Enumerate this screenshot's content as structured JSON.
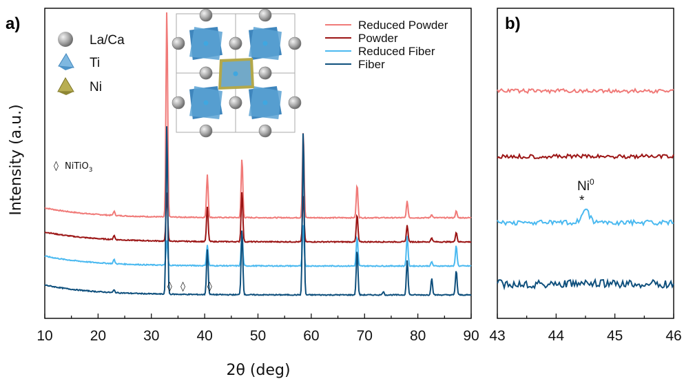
{
  "chart_data": [
    {
      "panel": "a)",
      "type": "line",
      "xlabel": "2θ (deg)",
      "ylabel": "Intensity (a.u.)",
      "xlim": [
        10,
        90
      ],
      "xticks": [
        10,
        20,
        30,
        40,
        50,
        60,
        70,
        80,
        90
      ],
      "grid": false,
      "legend_position": "top-right",
      "series": [
        {
          "name": "Reduced Powder",
          "color": "#f07a78",
          "offset": 3,
          "peaks": [
            [
              23.0,
              0.05
            ],
            [
              32.9,
              2.55
            ],
            [
              40.5,
              0.52
            ],
            [
              47.0,
              0.72
            ],
            [
              58.5,
              1.05
            ],
            [
              68.6,
              0.4
            ],
            [
              78.0,
              0.2
            ],
            [
              82.6,
              0.04
            ],
            [
              87.2,
              0.08
            ]
          ]
        },
        {
          "name": "Powder",
          "color": "#9b1414",
          "offset": 2,
          "peaks": [
            [
              23.0,
              0.05
            ],
            [
              32.9,
              0.6
            ],
            [
              40.5,
              0.42
            ],
            [
              47.0,
              0.62
            ],
            [
              58.5,
              0.57
            ],
            [
              68.6,
              0.33
            ],
            [
              78.0,
              0.2
            ],
            [
              82.6,
              0.05
            ],
            [
              87.2,
              0.12
            ]
          ]
        },
        {
          "name": "Reduced Fiber",
          "color": "#4ab9f0",
          "offset": 1,
          "peaks": [
            [
              23.0,
              0.05
            ],
            [
              32.9,
              0.3
            ],
            [
              40.5,
              0.25
            ],
            [
              47.0,
              0.4
            ],
            [
              58.5,
              0.5
            ],
            [
              68.6,
              0.36
            ],
            [
              78.0,
              0.36
            ],
            [
              82.6,
              0.05
            ],
            [
              87.2,
              0.25
            ]
          ]
        },
        {
          "name": "Fiber",
          "color": "#0e4f7c",
          "offset": 0,
          "peaks": [
            [
              23.0,
              0.03
            ],
            [
              32.9,
              2.05
            ],
            [
              40.5,
              0.55
            ],
            [
              47.0,
              0.8
            ],
            [
              58.5,
              2.0
            ],
            [
              68.6,
              0.55
            ],
            [
              73.5,
              0.04
            ],
            [
              78.0,
              0.42
            ],
            [
              82.6,
              0.2
            ],
            [
              87.2,
              0.3
            ]
          ]
        }
      ],
      "annotations": [
        {
          "text": "◊",
          "x": 33.5,
          "series": "Fiber"
        },
        {
          "text": "◊",
          "x": 36.0,
          "series": "Fiber"
        },
        {
          "text": "◊",
          "x": 41.0,
          "series": "Fiber"
        }
      ],
      "phase_marker_legend": {
        "symbol": "◊",
        "text": "NiTiO",
        "subscript": "3"
      },
      "structure_key": [
        {
          "label": "La/Ca",
          "shape": "sphere",
          "color": "#9a9a9a"
        },
        {
          "label": "Ti",
          "shape": "octahedron",
          "color": "#5a9fcf"
        },
        {
          "label": "Ni",
          "shape": "octahedron",
          "color": "#9e9636"
        }
      ]
    },
    {
      "panel": "b)",
      "type": "line",
      "xlim": [
        43,
        46
      ],
      "xticks": [
        43,
        44,
        45,
        46
      ],
      "grid": false,
      "series": [
        {
          "name": "Reduced Powder",
          "color": "#f07a78",
          "offset": 3,
          "peaks": []
        },
        {
          "name": "Powder",
          "color": "#9b1414",
          "offset": 2,
          "peaks": []
        },
        {
          "name": "Reduced Fiber",
          "color": "#4ab9f0",
          "offset": 1,
          "peaks": [
            [
              44.5,
              0.45
            ]
          ]
        },
        {
          "name": "Fiber",
          "color": "#0e4f7c",
          "offset": 0,
          "peaks": []
        }
      ],
      "annotation": {
        "text": "Ni",
        "superscript": "0",
        "marker": "*",
        "x": 44.5
      }
    }
  ]
}
